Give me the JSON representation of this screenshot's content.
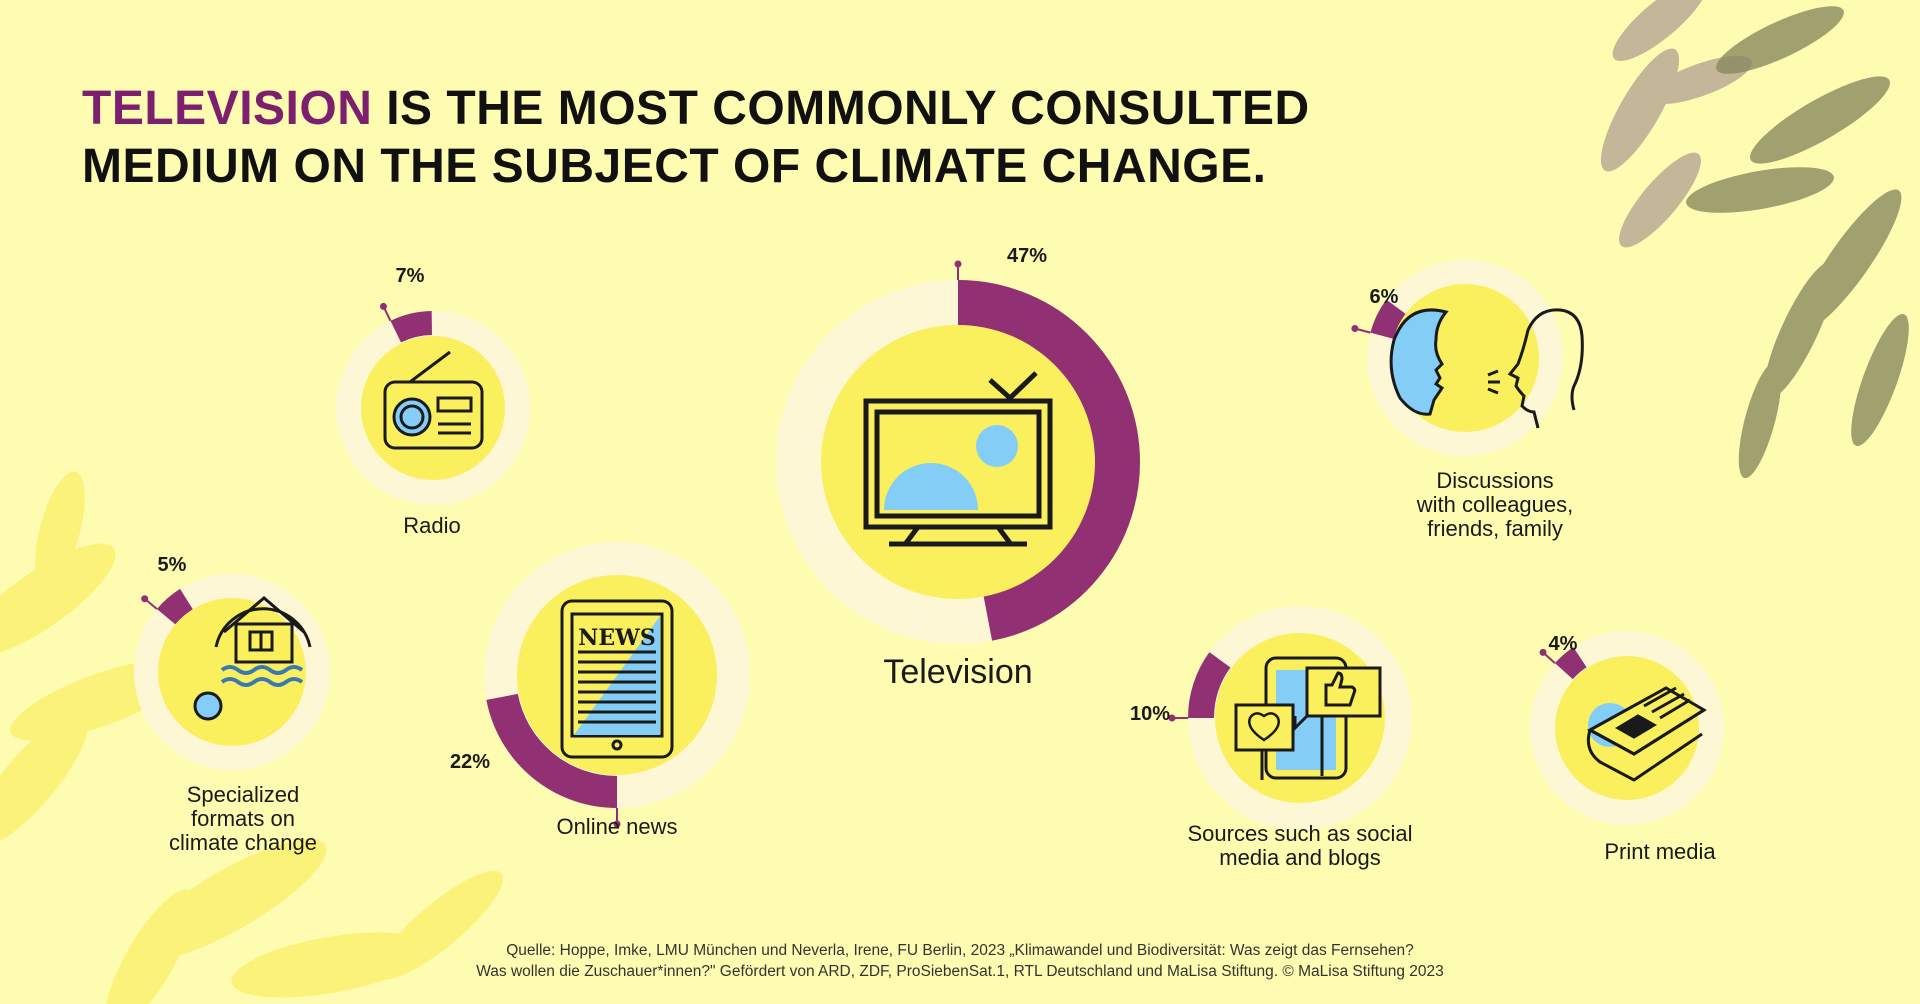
{
  "title": {
    "highlight": "TELEVISION",
    "rest_line1": " IS THE MOST COMMONLY CONSULTED",
    "line2": "MEDIUM ON THE SUBJECT OF CLIMATE CHANGE."
  },
  "colors": {
    "background": "#fefcb0",
    "accent": "#923074",
    "ring_track": "#fdf7d5",
    "inner_disc": "#faef5d",
    "icon_blue": "#83cdf6",
    "leaf_yellow": "#fbf27a",
    "leaf_olive": "#8a8a60",
    "leaf_taupe": "#b9aa95"
  },
  "chart_data": {
    "type": "pie",
    "unit": "%",
    "categories": [
      "Television",
      "Online news",
      "Sources such as social media and blogs",
      "Radio",
      "Discussions with colleagues, friends, family",
      "Specialized formats on climate change",
      "Print media"
    ],
    "values": [
      47,
      22,
      10,
      7,
      6,
      5,
      4
    ],
    "value_labels": [
      "47%",
      "22%",
      "10%",
      "7%",
      "6%",
      "5%",
      "4%"
    ],
    "labels_display": [
      "Television",
      "Online news",
      "Sources such as social\nmedia and blogs",
      "Radio",
      "Discussions\nwith colleagues,\nfriends, family",
      "Specialized\nformats on\nclimate change",
      "Print media"
    ],
    "icons": [
      "tv-icon",
      "tablet-news-icon",
      "smartphone-social-icon",
      "radio-icon",
      "speaking-heads-icon",
      "flooded-house-icon",
      "newspaper-icon"
    ]
  },
  "source": {
    "line1": "Quelle: Hoppe, Imke, LMU München und Neverla, Irene, FU Berlin, 2023 „Klimawandel und Biodiversität: Was zeigt das Fernsehen?",
    "line2": "Was wollen die Zuschauer*innen?\" Gefördert von ARD, ZDF, ProSiebenSat.1, RTL Deutschland und MaLisa Stiftung. © MaLisa Stiftung 2023"
  }
}
